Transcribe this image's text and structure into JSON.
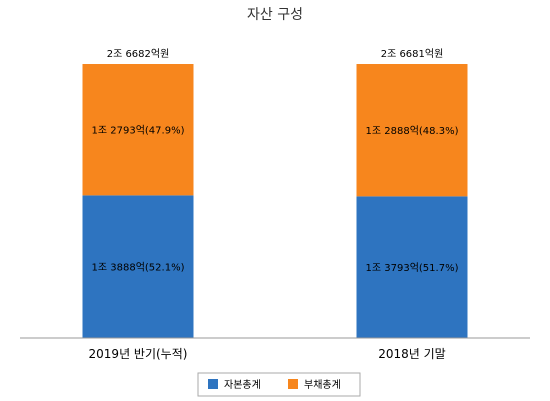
{
  "chart_data": {
    "type": "bar",
    "stacked": true,
    "title": "자산 구성",
    "categories": [
      "2019년 반기(누적)",
      "2018년 기말"
    ],
    "series": [
      {
        "name": "자본총계",
        "color": "#2e74c0",
        "values": [
          13888,
          13793
        ],
        "labels": [
          "1조 3888억(52.1%)",
          "1조 3793억(51.7%)"
        ]
      },
      {
        "name": "부채총계",
        "color": "#f7861d",
        "values": [
          12793,
          12888
        ],
        "labels": [
          "1조 2793억(47.9%)",
          "1조 2888억(48.3%)"
        ]
      }
    ],
    "totals": [
      26682,
      26681
    ],
    "total_labels": [
      "2조 6682억원",
      "2조 6681억원"
    ],
    "unit": "억원",
    "ylim": [
      0,
      26682
    ],
    "grid": false,
    "legend_position": "bottom"
  }
}
